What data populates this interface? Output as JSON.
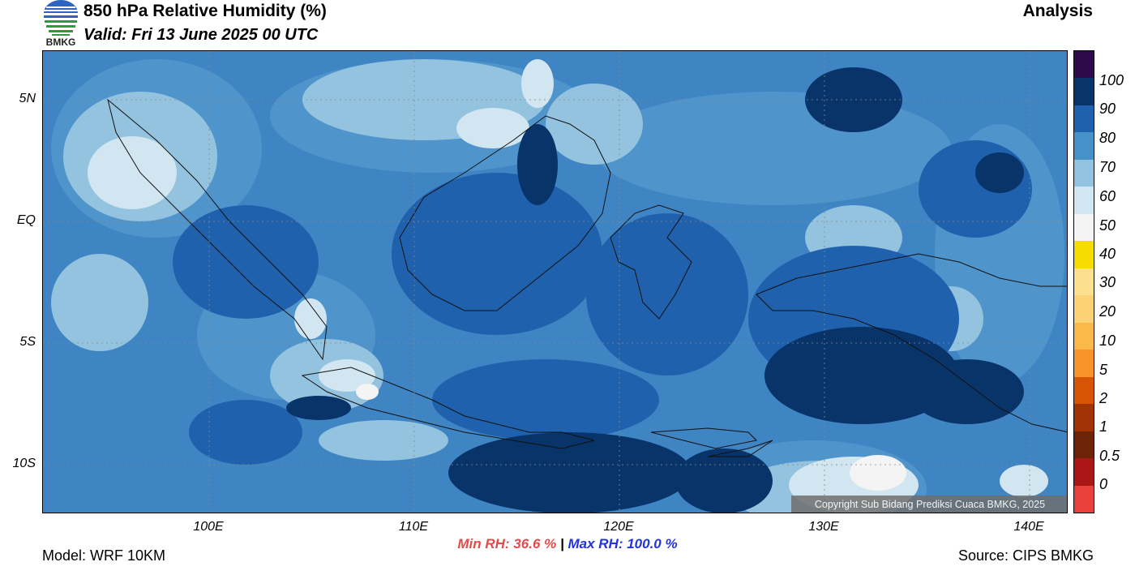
{
  "header": {
    "title": "850 hPa Relative Humidity (%)",
    "valid": "Valid: Fri 13 June 2025 00 UTC",
    "analysis": "Analysis",
    "logo_text": "BMKG"
  },
  "map": {
    "lat_labels": [
      "5N",
      "EQ",
      "5S",
      "10S"
    ],
    "lon_labels": [
      "100E",
      "110E",
      "120E",
      "130E",
      "140E"
    ],
    "copyright": "Copyright Sub Bidang Prediksi Cuaca BMKG, 2025",
    "ocean_color": "#3f85c4"
  },
  "colorbar": {
    "labels": [
      "100",
      "90",
      "80",
      "70",
      "60",
      "50",
      "40",
      "30",
      "20",
      "10",
      "5",
      "2",
      "1",
      "0.5",
      "0"
    ],
    "colors": [
      "#2e0a4a",
      "#083469",
      "#1f61ad",
      "#4592c8",
      "#94c3e0",
      "#d2e6f2",
      "#f4f4f4",
      "#f7dc00",
      "#fde08d",
      "#fdd277",
      "#fdb84c",
      "#f8932a",
      "#d85508",
      "#a23306",
      "#6c2307",
      "#ab1616",
      "#e8413c"
    ]
  },
  "stats": {
    "min": "Min RH:  36.6 %",
    "separator": "|",
    "max": "Max RH: 100.0 %"
  },
  "footer": {
    "model": "Model: WRF 10KM",
    "source": "Source: CIPS BMKG"
  }
}
